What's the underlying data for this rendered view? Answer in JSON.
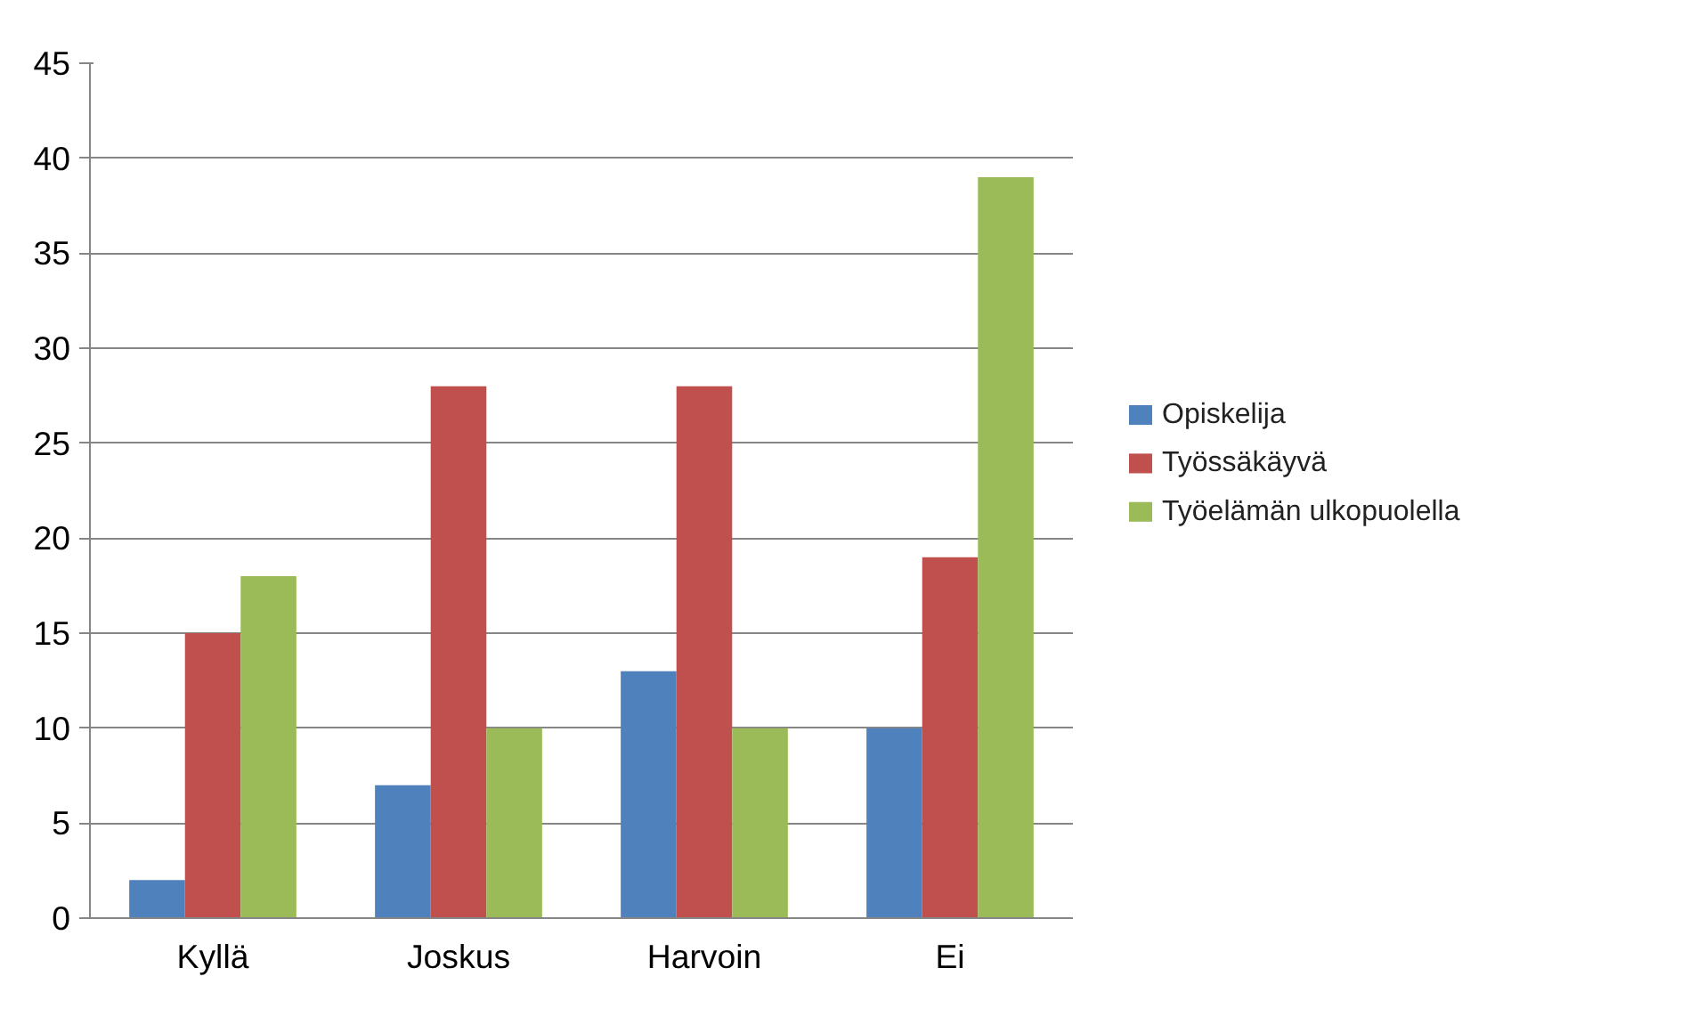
{
  "chart_data": {
    "type": "bar",
    "categories": [
      "Kyllä",
      "Joskus",
      "Harvoin",
      "Ei"
    ],
    "series": [
      {
        "name": "Opiskelija",
        "color": "#4f81bd",
        "values": [
          2,
          7,
          13,
          10
        ]
      },
      {
        "name": "Työssäkäyvä",
        "color": "#c0504d",
        "values": [
          15,
          28,
          28,
          19
        ]
      },
      {
        "name": "Työelämän ulkopuolella",
        "color": "#9bbb59",
        "values": [
          18,
          10,
          10,
          39
        ]
      }
    ],
    "ylim": [
      0,
      45
    ],
    "yticks": [
      0,
      5,
      10,
      15,
      20,
      25,
      30,
      35,
      40,
      45
    ],
    "grid": "y",
    "legend": "right"
  }
}
